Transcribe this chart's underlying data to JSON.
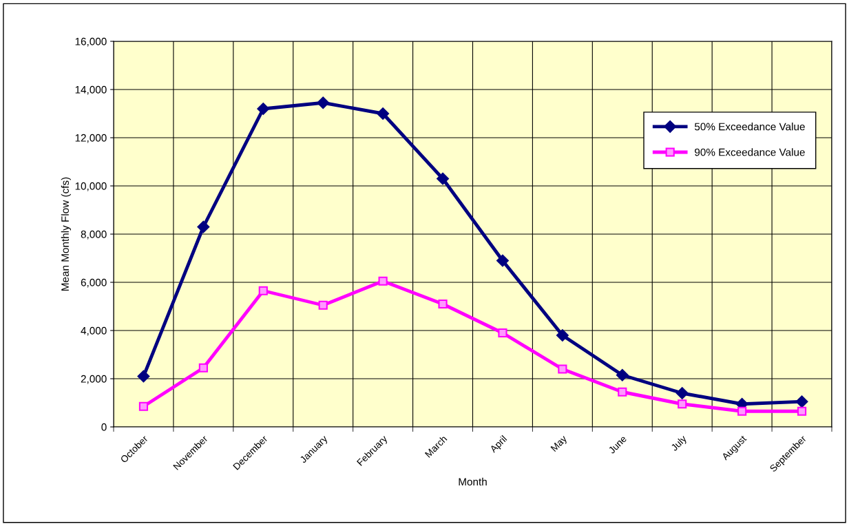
{
  "chart_data": {
    "type": "line",
    "xlabel": "Month",
    "ylabel": "Mean Monthly Flow (cfs)",
    "categories": [
      "October",
      "November",
      "December",
      "January",
      "February",
      "March",
      "April",
      "May",
      "June",
      "July",
      "August",
      "September"
    ],
    "series": [
      {
        "name": "50% Exceedance Value",
        "color": "#000080",
        "marker": "diamond",
        "values": [
          2100,
          8300,
          13200,
          13450,
          13000,
          10300,
          6900,
          3800,
          2150,
          1400,
          950,
          1050
        ]
      },
      {
        "name": "90% Exceedance Value",
        "color": "#ff00ff",
        "marker": "square",
        "values": [
          850,
          2450,
          5650,
          5050,
          6050,
          5100,
          3900,
          2400,
          1450,
          950,
          650,
          650
        ]
      }
    ],
    "ylim": [
      0,
      16000
    ],
    "yticks": [
      {
        "value": 0,
        "label": "0"
      },
      {
        "value": 2000,
        "label": "2,000"
      },
      {
        "value": 4000,
        "label": "4,000"
      },
      {
        "value": 6000,
        "label": "6,000"
      },
      {
        "value": 8000,
        "label": "8,000"
      },
      {
        "value": 10000,
        "label": "10,000"
      },
      {
        "value": 12000,
        "label": "12,000"
      },
      {
        "value": 14000,
        "label": "14,000"
      },
      {
        "value": 16000,
        "label": "16,000"
      }
    ],
    "grid": true,
    "legend": "top right",
    "line_style": "solid"
  }
}
